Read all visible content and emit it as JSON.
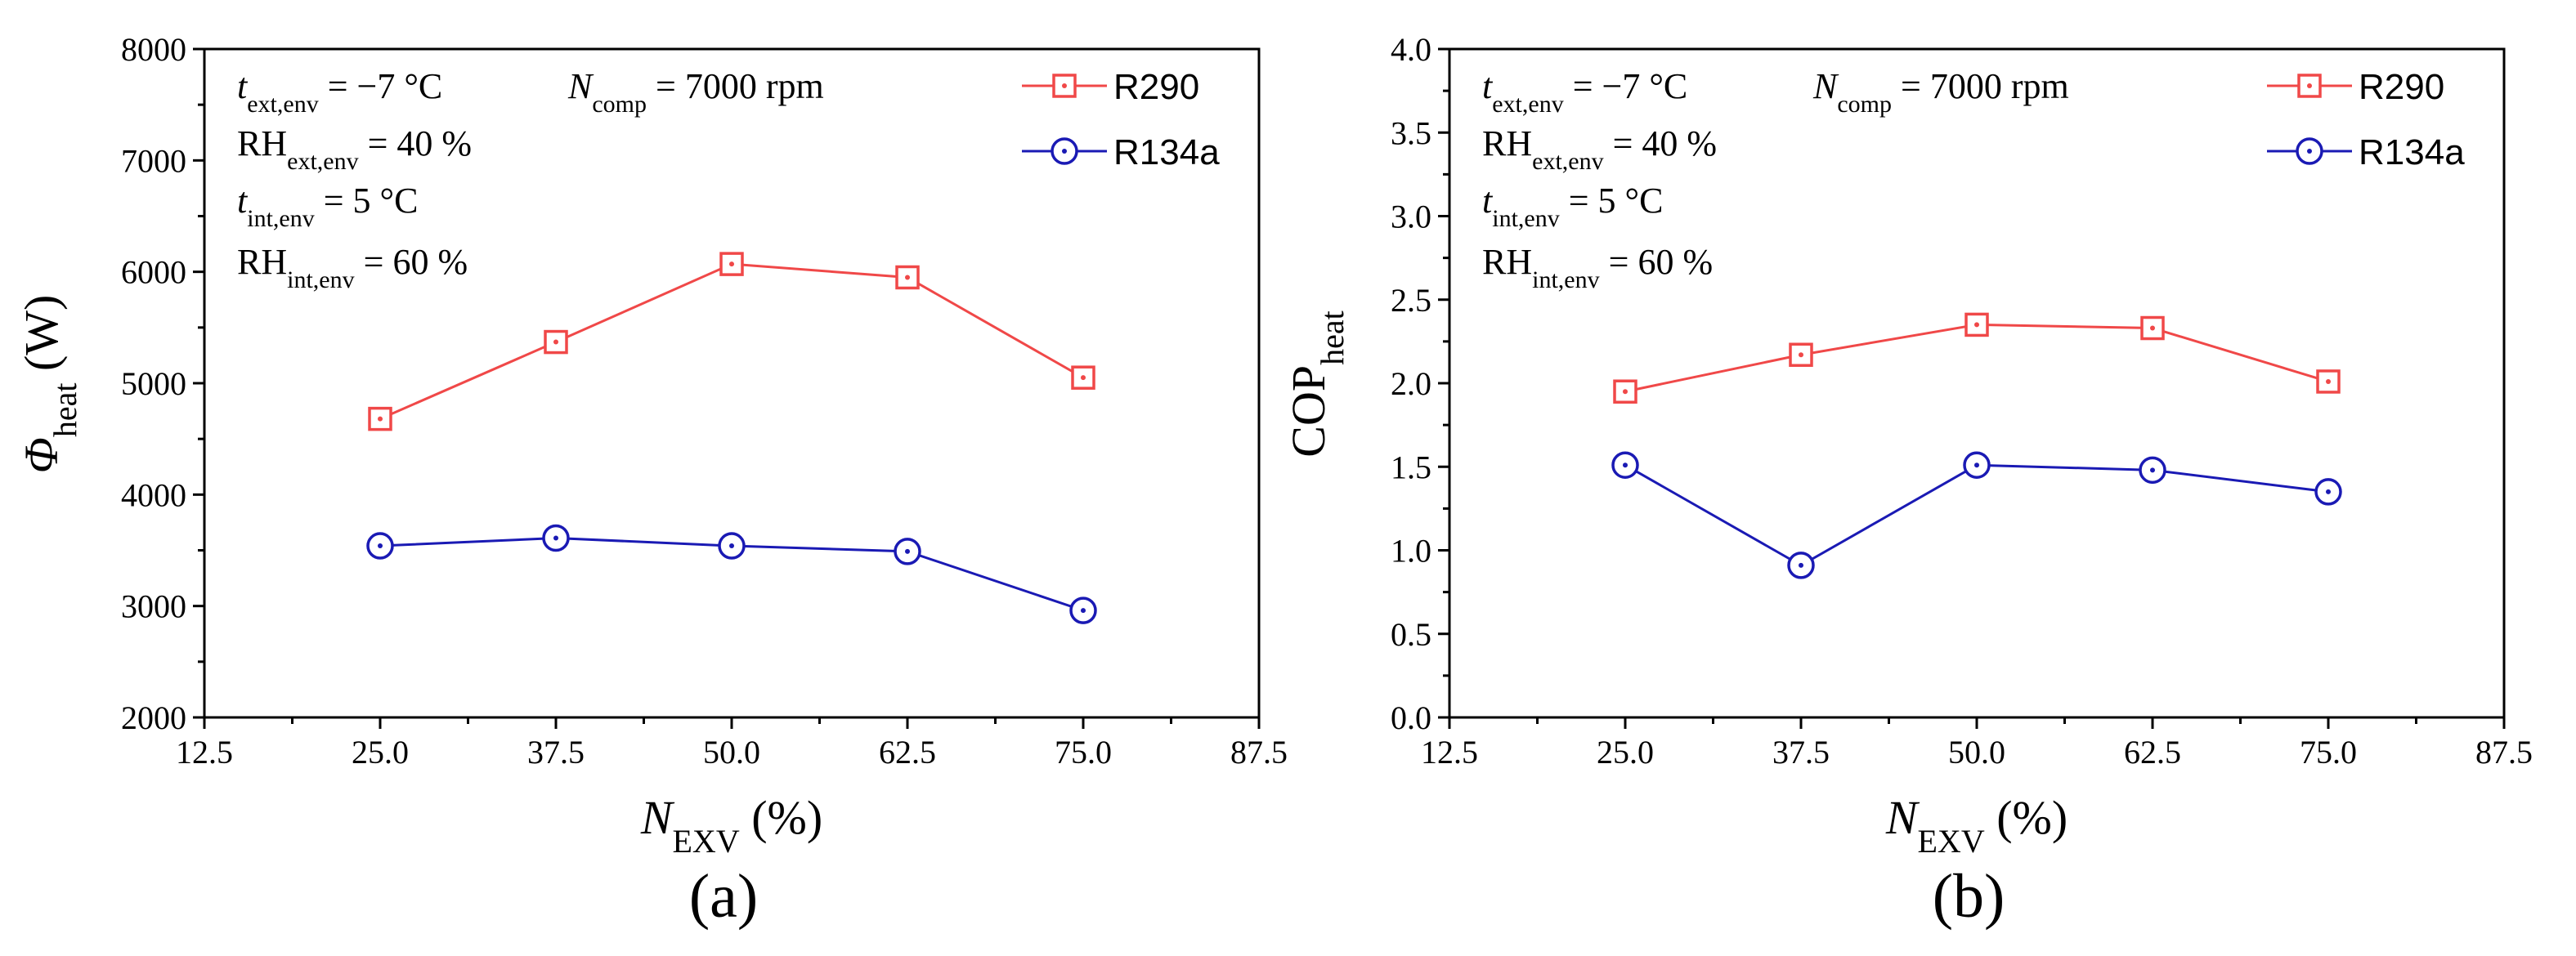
{
  "chart_data": [
    {
      "type": "line",
      "panel_label": "(a)",
      "xlabel": "N_EXV (%)",
      "xlabel_parts": {
        "main": "N",
        "sub": "EXV",
        "unit": " (%)"
      },
      "ylabel": "Φ_heat (W)",
      "ylabel_parts": {
        "main": "Φ",
        "sub": "heat",
        "unit": " (W)"
      },
      "xlim": [
        12.5,
        87.5
      ],
      "ylim": [
        2000,
        8000
      ],
      "xticks": [
        12.5,
        25.0,
        37.5,
        50.0,
        62.5,
        75.0,
        87.5
      ],
      "xtick_labels": [
        "12.5",
        "25.0",
        "37.5",
        "50.0",
        "62.5",
        "75.0",
        "87.5"
      ],
      "yticks": [
        2000,
        3000,
        4000,
        5000,
        6000,
        7000,
        8000
      ],
      "ytick_labels": [
        "2000",
        "3000",
        "4000",
        "5000",
        "6000",
        "7000",
        "8000"
      ],
      "x": [
        25.0,
        37.5,
        50.0,
        62.5,
        75.0
      ],
      "series": [
        {
          "name": "R290",
          "marker": "square-dot",
          "color": "#f04848",
          "values": [
            4680,
            5370,
            6070,
            5950,
            5050
          ]
        },
        {
          "name": "R134a",
          "marker": "circle-dot",
          "color": "#1a1ab4",
          "values": [
            3540,
            3610,
            3540,
            3490,
            2960
          ]
        }
      ],
      "legend_position": "top-right",
      "annotations": {
        "t_ext": {
          "main": "t",
          "sub": "ext,env",
          "rest": " = −7 °C"
        },
        "n_comp": {
          "main": "N",
          "sub": "comp",
          "rest": " = 7000 rpm"
        },
        "rh_ext": {
          "main": "RH",
          "sub": "ext,env",
          "rest": " = 40 %"
        },
        "t_int": {
          "main": "t",
          "sub": "int,env",
          "rest": " = 5 °C"
        },
        "rh_int": {
          "main": "RH",
          "sub": "int,env",
          "rest": " = 60 %"
        }
      }
    },
    {
      "type": "line",
      "panel_label": "(b)",
      "xlabel": "N_EXV (%)",
      "xlabel_parts": {
        "main": "N",
        "sub": "EXV",
        "unit": " (%)"
      },
      "ylabel": "COP_heat",
      "ylabel_parts": {
        "main": "COP",
        "sub": "heat",
        "unit": ""
      },
      "xlim": [
        12.5,
        87.5
      ],
      "ylim": [
        0.0,
        4.0
      ],
      "xticks": [
        12.5,
        25.0,
        37.5,
        50.0,
        62.5,
        75.0,
        87.5
      ],
      "xtick_labels": [
        "12.5",
        "25.0",
        "37.5",
        "50.0",
        "62.5",
        "75.0",
        "87.5"
      ],
      "yticks": [
        0.0,
        0.5,
        1.0,
        1.5,
        2.0,
        2.5,
        3.0,
        3.5,
        4.0
      ],
      "ytick_labels": [
        "0.0",
        "0.5",
        "1.0",
        "1.5",
        "2.0",
        "2.5",
        "3.0",
        "3.5",
        "4.0"
      ],
      "x": [
        25.0,
        37.5,
        50.0,
        62.5,
        75.0
      ],
      "series": [
        {
          "name": "R290",
          "marker": "square-dot",
          "color": "#f04848",
          "values": [
            1.95,
            2.17,
            2.35,
            2.33,
            2.01
          ]
        },
        {
          "name": "R134a",
          "marker": "circle-dot",
          "color": "#1a1ab4",
          "values": [
            1.51,
            0.91,
            1.51,
            1.48,
            1.35
          ]
        }
      ],
      "legend_position": "top-right",
      "annotations": {
        "t_ext": {
          "main": "t",
          "sub": "ext,env",
          "rest": " = −7 °C"
        },
        "n_comp": {
          "main": "N",
          "sub": "comp",
          "rest": " = 7000 rpm"
        },
        "rh_ext": {
          "main": "RH",
          "sub": "ext,env",
          "rest": " = 40 %"
        },
        "t_int": {
          "main": "t",
          "sub": "int,env",
          "rest": " = 5 °C"
        },
        "rh_int": {
          "main": "RH",
          "sub": "int,env",
          "rest": " = 60 %"
        }
      }
    }
  ]
}
